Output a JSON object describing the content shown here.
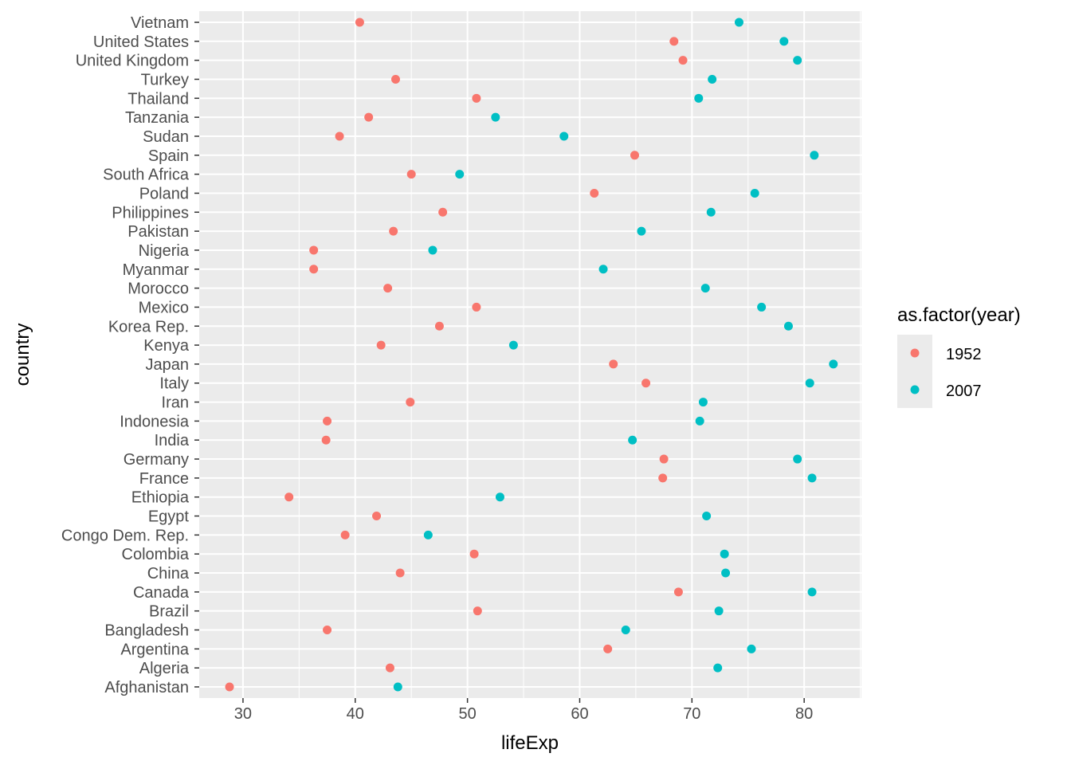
{
  "chart_data": {
    "type": "scatter",
    "title": "",
    "xlabel": "lifeExp",
    "ylabel": "country",
    "xlim": [
      26.1,
      85.1
    ],
    "x_ticks": [
      30,
      40,
      50,
      60,
      70,
      80
    ],
    "grid": true,
    "legend": {
      "title": "as.factor(year)",
      "placement": "right",
      "entries": [
        {
          "label": "1952",
          "color": "#F8766D"
        },
        {
          "label": "2007",
          "color": "#00BFC4"
        }
      ]
    },
    "categories": [
      "Afghanistan",
      "Algeria",
      "Argentina",
      "Bangladesh",
      "Brazil",
      "Canada",
      "China",
      "Colombia",
      "Congo Dem. Rep.",
      "Egypt",
      "Ethiopia",
      "France",
      "Germany",
      "India",
      "Indonesia",
      "Iran",
      "Italy",
      "Japan",
      "Kenya",
      "Korea Rep.",
      "Mexico",
      "Morocco",
      "Myanmar",
      "Nigeria",
      "Pakistan",
      "Philippines",
      "Poland",
      "South Africa",
      "Spain",
      "Sudan",
      "Tanzania",
      "Thailand",
      "Turkey",
      "United Kingdom",
      "United States",
      "Vietnam"
    ],
    "series": [
      {
        "name": "1952",
        "color": "#F8766D",
        "values": [
          28.8,
          43.1,
          62.5,
          37.5,
          50.9,
          68.8,
          44.0,
          50.6,
          39.1,
          41.9,
          34.1,
          67.4,
          67.5,
          37.4,
          37.5,
          44.9,
          65.9,
          63.0,
          42.3,
          47.5,
          50.8,
          42.9,
          36.3,
          36.3,
          43.4,
          47.8,
          61.3,
          45.0,
          64.9,
          38.6,
          41.2,
          50.8,
          43.6,
          69.2,
          68.4,
          40.4
        ]
      },
      {
        "name": "2007",
        "color": "#00BFC4",
        "values": [
          43.8,
          72.3,
          75.3,
          64.1,
          72.4,
          80.7,
          73.0,
          72.9,
          46.5,
          71.3,
          52.9,
          80.7,
          79.4,
          64.7,
          70.7,
          71.0,
          80.5,
          82.6,
          54.1,
          78.6,
          76.2,
          71.2,
          62.1,
          46.9,
          65.5,
          71.7,
          75.6,
          49.3,
          80.9,
          58.6,
          52.5,
          70.6,
          71.8,
          79.4,
          78.2,
          74.2
        ]
      }
    ]
  }
}
